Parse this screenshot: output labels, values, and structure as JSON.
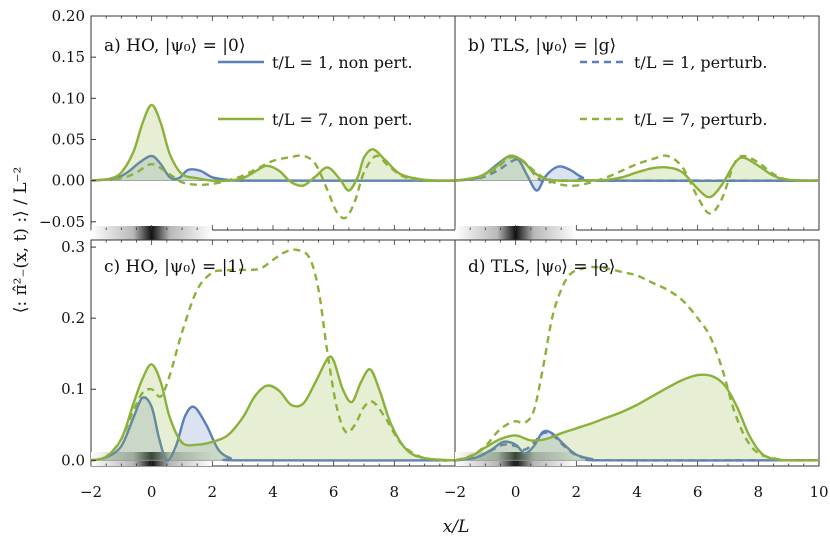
{
  "figure": {
    "xlabel": "x/L",
    "ylabel": "⟨: π̂²₋(x, t) :⟩ / L⁻²",
    "legend_left": [
      "t/L = 1, non pert.",
      "t/L = 7, non pert."
    ],
    "legend_right": [
      "t/L = 1, perturb.",
      "t/L = 7, perturb."
    ]
  },
  "colors": {
    "blue": "#5b7fb9",
    "green": "#8bb13b",
    "blue_fill": "rgba(91,127,185,0.22)",
    "green_fill": "rgba(139,177,59,0.22)",
    "frame": "#333333"
  },
  "chart_data": [
    {
      "type": "line",
      "panel": "a",
      "title": "a) HO, |ψ₀⟩ = |0⟩",
      "xlim": [
        -2,
        10
      ],
      "ylim": [
        -0.06,
        0.2
      ],
      "yticks": [
        -0.05,
        0.0,
        0.05,
        0.1,
        0.15,
        0.2
      ],
      "ytick_labels": [
        "−0.05",
        "0.00",
        "0.05",
        "0.10",
        "0.15",
        "0.20"
      ],
      "series": [
        {
          "name": "t/L = 1, non pert.",
          "style": "solid",
          "color": "blue",
          "x": [
            -2,
            -1.2,
            -0.8,
            -0.4,
            0,
            0.3,
            0.6,
            0.9,
            1.2,
            1.6,
            2.0,
            2.5,
            3,
            10
          ],
          "y": [
            0.0,
            0.003,
            0.01,
            0.022,
            0.03,
            0.02,
            0.004,
            0.003,
            0.013,
            0.012,
            0.004,
            0.001,
            0.0,
            0.0
          ]
        },
        {
          "name": "t/L = 7, non pert.",
          "style": "solid",
          "color": "green",
          "x": [
            -2,
            -1.4,
            -1.0,
            -0.6,
            -0.3,
            0,
            0.3,
            0.6,
            1.0,
            1.5,
            2.0,
            2.5,
            3.0,
            3.5,
            3.8,
            4.2,
            4.6,
            5.0,
            5.4,
            5.8,
            6.2,
            6.5,
            6.8,
            7.0,
            7.3,
            7.7,
            8.2,
            9.0,
            10
          ],
          "y": [
            0.0,
            0.002,
            0.01,
            0.035,
            0.07,
            0.092,
            0.07,
            0.032,
            0.008,
            0.003,
            0.0,
            0.0,
            0.003,
            0.013,
            0.018,
            0.012,
            -0.002,
            -0.006,
            0.005,
            0.016,
            0.002,
            -0.012,
            0.005,
            0.028,
            0.038,
            0.025,
            0.008,
            0.001,
            0.0
          ]
        },
        {
          "name": "t/L = 7, perturb.",
          "style": "dashed",
          "color": "green",
          "x": [
            -2,
            -1.0,
            -0.5,
            0,
            0.5,
            1.0,
            1.5,
            2.0,
            2.5,
            3.0,
            3.5,
            4.0,
            4.5,
            5.0,
            5.4,
            5.8,
            6.1,
            6.4,
            6.7,
            7.0,
            7.4,
            7.8,
            8.3,
            9.0,
            10
          ],
          "y": [
            0.0,
            0.003,
            0.01,
            0.02,
            0.01,
            -0.002,
            -0.005,
            -0.004,
            0.0,
            0.006,
            0.015,
            0.024,
            0.028,
            0.03,
            0.02,
            -0.012,
            -0.038,
            -0.045,
            -0.025,
            0.01,
            0.03,
            0.018,
            0.005,
            0.0,
            0.0
          ]
        }
      ]
    },
    {
      "type": "line",
      "panel": "b",
      "title": "b) TLS, |ψ₀⟩ = |g⟩",
      "xlim": [
        -2,
        10
      ],
      "ylim": [
        -0.06,
        0.2
      ],
      "series": [
        {
          "name": "t/L = 1, non pert.",
          "style": "solid",
          "color": "blue",
          "x": [
            -2,
            -1.2,
            -0.6,
            -0.2,
            0.1,
            0.4,
            0.7,
            1.0,
            1.4,
            1.8,
            2.2,
            2.8,
            10
          ],
          "y": [
            0.0,
            0.004,
            0.02,
            0.03,
            0.025,
            0.005,
            -0.012,
            0.006,
            0.017,
            0.013,
            0.004,
            0.0,
            0.0
          ]
        },
        {
          "name": "t/L = 1, perturb.",
          "style": "dashed",
          "color": "blue",
          "x": [
            -2,
            -1.2,
            -0.6,
            -0.2,
            0.1,
            0.4,
            0.7,
            1.0,
            1.5,
            2.0,
            3.0,
            10
          ],
          "y": [
            0.0,
            0.003,
            0.012,
            0.022,
            0.026,
            0.018,
            0.004,
            -0.002,
            0.0,
            0.0,
            0.0,
            0.0
          ]
        },
        {
          "name": "t/L = 7, non pert.",
          "style": "solid",
          "color": "green",
          "x": [
            -2,
            -1.2,
            -0.6,
            -0.2,
            0.2,
            0.6,
            1.0,
            1.5,
            2.0,
            3.0,
            3.5,
            4.0,
            4.5,
            5.0,
            5.5,
            6.0,
            6.4,
            6.8,
            7.2,
            7.5,
            8.0,
            8.5,
            9.0,
            10
          ],
          "y": [
            0.0,
            0.005,
            0.018,
            0.03,
            0.025,
            0.01,
            0.002,
            0.0,
            0.0,
            0.001,
            0.004,
            0.01,
            0.015,
            0.016,
            0.01,
            -0.01,
            -0.02,
            -0.005,
            0.02,
            0.028,
            0.018,
            0.006,
            0.001,
            0.0
          ]
        },
        {
          "name": "t/L = 7, perturb.",
          "style": "dashed",
          "color": "green",
          "x": [
            -2,
            -1.2,
            -0.6,
            -0.2,
            0.2,
            0.6,
            1.0,
            1.5,
            2.0,
            2.5,
            3.0,
            3.5,
            4.0,
            4.5,
            5.0,
            5.5,
            6.0,
            6.4,
            6.8,
            7.2,
            7.5,
            8.0,
            8.5,
            9.0,
            10
          ],
          "y": [
            0.0,
            0.004,
            0.016,
            0.028,
            0.025,
            0.012,
            0.002,
            -0.005,
            -0.006,
            -0.002,
            0.004,
            0.012,
            0.02,
            0.026,
            0.03,
            0.016,
            -0.02,
            -0.04,
            -0.022,
            0.02,
            0.03,
            0.022,
            0.008,
            0.001,
            0.0
          ]
        }
      ]
    },
    {
      "type": "line",
      "panel": "c",
      "title": "c) HO, |ψ₀⟩ = |1⟩",
      "xlim": [
        -2,
        10
      ],
      "ylim": [
        -0.01,
        0.31
      ],
      "yticks": [
        0.0,
        0.1,
        0.2,
        0.3
      ],
      "ytick_labels": [
        "0.0",
        "0.1",
        "0.2",
        "0.3"
      ],
      "xticks": [
        -2,
        0,
        2,
        4,
        6,
        8
      ],
      "xtick_labels": [
        "−2",
        "0",
        "2",
        "4",
        "6",
        "8"
      ],
      "series": [
        {
          "name": "t/L = 1, non pert.",
          "style": "solid",
          "color": "blue",
          "x": [
            -2,
            -1.5,
            -1.0,
            -0.6,
            -0.3,
            0,
            0.25,
            0.5,
            0.8,
            1.1,
            1.4,
            1.8,
            2.2,
            2.6,
            3.0,
            10
          ],
          "y": [
            0.0,
            0.004,
            0.02,
            0.06,
            0.088,
            0.075,
            0.03,
            0.0,
            0.02,
            0.062,
            0.075,
            0.05,
            0.015,
            0.003,
            0.0,
            0.0
          ]
        },
        {
          "name": "t/L = 7, non pert.",
          "style": "solid",
          "color": "green",
          "x": [
            -2,
            -1.5,
            -1.0,
            -0.6,
            -0.3,
            0,
            0.3,
            0.6,
            1.0,
            1.5,
            2.0,
            2.5,
            3.0,
            3.4,
            3.8,
            4.2,
            4.6,
            5.0,
            5.4,
            5.8,
            6.0,
            6.3,
            6.6,
            6.9,
            7.2,
            7.5,
            7.9,
            8.4,
            9.0,
            10
          ],
          "y": [
            0.0,
            0.005,
            0.03,
            0.08,
            0.115,
            0.135,
            0.11,
            0.06,
            0.025,
            0.022,
            0.026,
            0.035,
            0.06,
            0.09,
            0.105,
            0.098,
            0.078,
            0.08,
            0.11,
            0.143,
            0.14,
            0.1,
            0.082,
            0.11,
            0.128,
            0.1,
            0.05,
            0.015,
            0.003,
            0.0
          ]
        },
        {
          "name": "t/L = 7, perturb.",
          "style": "dashed",
          "color": "green",
          "x": [
            -2,
            -1.5,
            -1.0,
            -0.6,
            -0.3,
            0,
            0.3,
            0.6,
            1.0,
            1.5,
            2.0,
            2.4,
            2.8,
            3.2,
            3.6,
            4.0,
            4.4,
            4.8,
            5.2,
            5.5,
            5.8,
            6.1,
            6.4,
            6.7,
            7.0,
            7.3,
            7.7,
            8.2,
            8.8,
            9.5,
            10
          ],
          "y": [
            0.0,
            0.005,
            0.03,
            0.07,
            0.095,
            0.1,
            0.09,
            0.12,
            0.18,
            0.24,
            0.264,
            0.267,
            0.268,
            0.268,
            0.27,
            0.282,
            0.293,
            0.296,
            0.285,
            0.24,
            0.15,
            0.075,
            0.04,
            0.05,
            0.075,
            0.082,
            0.06,
            0.025,
            0.006,
            0.0,
            0.0
          ]
        }
      ]
    },
    {
      "type": "line",
      "panel": "d",
      "title": "d) TLS, |ψ₀⟩ = |e⟩",
      "xlim": [
        -2,
        10
      ],
      "ylim": [
        -0.01,
        0.31
      ],
      "xticks": [
        -2,
        0,
        2,
        4,
        6,
        8,
        10
      ],
      "xtick_labels": [
        "−2",
        "0",
        "2",
        "4",
        "6",
        "8",
        "10"
      ],
      "series": [
        {
          "name": "t/L = 1, non pert.",
          "style": "solid",
          "color": "blue",
          "x": [
            -2,
            -1.3,
            -0.8,
            -0.4,
            0,
            0.3,
            0.6,
            0.9,
            1.2,
            1.6,
            2.0,
            2.5,
            3.0,
            10
          ],
          "y": [
            0.0,
            0.004,
            0.015,
            0.026,
            0.022,
            0.01,
            0.02,
            0.04,
            0.038,
            0.022,
            0.008,
            0.002,
            0.0,
            0.0
          ]
        },
        {
          "name": "t/L = 1, perturb.",
          "style": "dashed",
          "color": "blue",
          "x": [
            -2,
            -1.3,
            -0.8,
            -0.4,
            0,
            0.3,
            0.6,
            0.9,
            1.2,
            1.6,
            2.0,
            2.5,
            3.0,
            10
          ],
          "y": [
            0.0,
            0.004,
            0.014,
            0.022,
            0.02,
            0.015,
            0.025,
            0.038,
            0.036,
            0.02,
            0.007,
            0.002,
            0.0,
            0.0
          ]
        },
        {
          "name": "t/L = 7, non pert.",
          "style": "solid",
          "color": "green",
          "x": [
            -2,
            -1.5,
            -1.0,
            -0.5,
            0,
            0.5,
            1.0,
            1.5,
            2.0,
            2.5,
            3.0,
            3.5,
            4.0,
            4.5,
            5.0,
            5.5,
            6.0,
            6.5,
            6.9,
            7.3,
            7.7,
            8.1,
            8.5,
            9.0,
            10
          ],
          "y": [
            0.0,
            0.005,
            0.018,
            0.03,
            0.035,
            0.028,
            0.03,
            0.038,
            0.045,
            0.052,
            0.06,
            0.068,
            0.078,
            0.09,
            0.102,
            0.113,
            0.12,
            0.118,
            0.105,
            0.075,
            0.035,
            0.01,
            0.002,
            0.0,
            0.0
          ]
        },
        {
          "name": "t/L = 7, perturb.",
          "style": "dashed",
          "color": "green",
          "x": [
            -2,
            -1.5,
            -1.0,
            -0.6,
            -0.3,
            0,
            0.3,
            0.6,
            0.9,
            1.2,
            1.5,
            1.8,
            2.2,
            2.6,
            3.0,
            3.5,
            4.0,
            4.5,
            5.0,
            5.5,
            6.0,
            6.4,
            6.8,
            7.2,
            7.6,
            8.0,
            8.5,
            9.0,
            10
          ],
          "y": [
            0.0,
            0.006,
            0.02,
            0.04,
            0.05,
            0.055,
            0.053,
            0.07,
            0.13,
            0.2,
            0.24,
            0.262,
            0.27,
            0.272,
            0.27,
            0.265,
            0.26,
            0.25,
            0.24,
            0.225,
            0.2,
            0.175,
            0.13,
            0.07,
            0.03,
            0.01,
            0.003,
            0.0,
            0.0
          ]
        }
      ]
    }
  ]
}
